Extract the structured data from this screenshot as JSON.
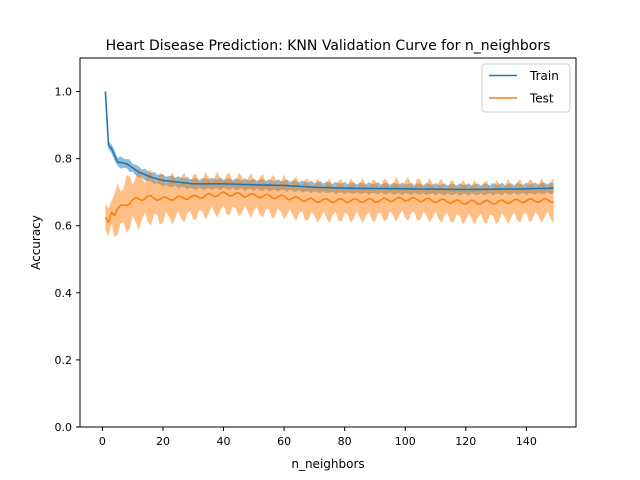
{
  "chart_data": {
    "type": "line",
    "title": "Heart Disease Prediction: KNN Validation Curve for n_neighbors",
    "xlabel": "n_neighbors",
    "ylabel": "Accuracy",
    "xlim": [
      -7.4,
      156.4
    ],
    "ylim": [
      0.0,
      1.1
    ],
    "xticks": [
      0,
      20,
      40,
      60,
      80,
      100,
      120,
      140
    ],
    "yticks": [
      0.0,
      0.2,
      0.4,
      0.6,
      0.8,
      1.0
    ],
    "xtick_labels": [
      "0",
      "20",
      "40",
      "60",
      "80",
      "100",
      "120",
      "140"
    ],
    "ytick_labels": [
      "0.0",
      "0.2",
      "0.4",
      "0.6",
      "0.8",
      "1.0"
    ],
    "grid": false,
    "legend_position": "top-right",
    "x_range": [
      1,
      149
    ],
    "series": [
      {
        "name": "Train",
        "color": "#1f77b4",
        "mean_keypoints": [
          [
            1,
            1.0
          ],
          [
            2,
            0.84
          ],
          [
            3,
            0.83
          ],
          [
            5,
            0.79
          ],
          [
            8,
            0.785
          ],
          [
            12,
            0.76
          ],
          [
            16,
            0.745
          ],
          [
            20,
            0.735
          ],
          [
            30,
            0.725
          ],
          [
            40,
            0.725
          ],
          [
            50,
            0.722
          ],
          [
            60,
            0.72
          ],
          [
            70,
            0.715
          ],
          [
            80,
            0.712
          ],
          [
            100,
            0.71
          ],
          [
            120,
            0.708
          ],
          [
            140,
            0.71
          ],
          [
            149,
            0.712
          ]
        ],
        "band_halfwidth_keypoints": [
          [
            1,
            0.0
          ],
          [
            2,
            0.012
          ],
          [
            5,
            0.015
          ],
          [
            10,
            0.015
          ],
          [
            20,
            0.015
          ],
          [
            60,
            0.015
          ],
          [
            149,
            0.015
          ]
        ]
      },
      {
        "name": "Test",
        "color": "#ff7f0e",
        "mean_keypoints": [
          [
            1,
            0.625
          ],
          [
            2,
            0.61
          ],
          [
            3,
            0.64
          ],
          [
            4,
            0.63
          ],
          [
            5,
            0.65
          ],
          [
            8,
            0.665
          ],
          [
            10,
            0.675
          ],
          [
            15,
            0.685
          ],
          [
            20,
            0.68
          ],
          [
            30,
            0.685
          ],
          [
            40,
            0.695
          ],
          [
            50,
            0.69
          ],
          [
            60,
            0.685
          ],
          [
            70,
            0.675
          ],
          [
            80,
            0.675
          ],
          [
            90,
            0.675
          ],
          [
            100,
            0.68
          ],
          [
            110,
            0.675
          ],
          [
            120,
            0.67
          ],
          [
            130,
            0.67
          ],
          [
            140,
            0.675
          ],
          [
            149,
            0.675
          ]
        ],
        "band_halfwidth_keypoints": [
          [
            1,
            0.04
          ],
          [
            5,
            0.06
          ],
          [
            10,
            0.07
          ],
          [
            20,
            0.06
          ],
          [
            40,
            0.05
          ],
          [
            60,
            0.05
          ],
          [
            80,
            0.05
          ],
          [
            100,
            0.05
          ],
          [
            120,
            0.05
          ],
          [
            149,
            0.05
          ]
        ]
      }
    ]
  }
}
